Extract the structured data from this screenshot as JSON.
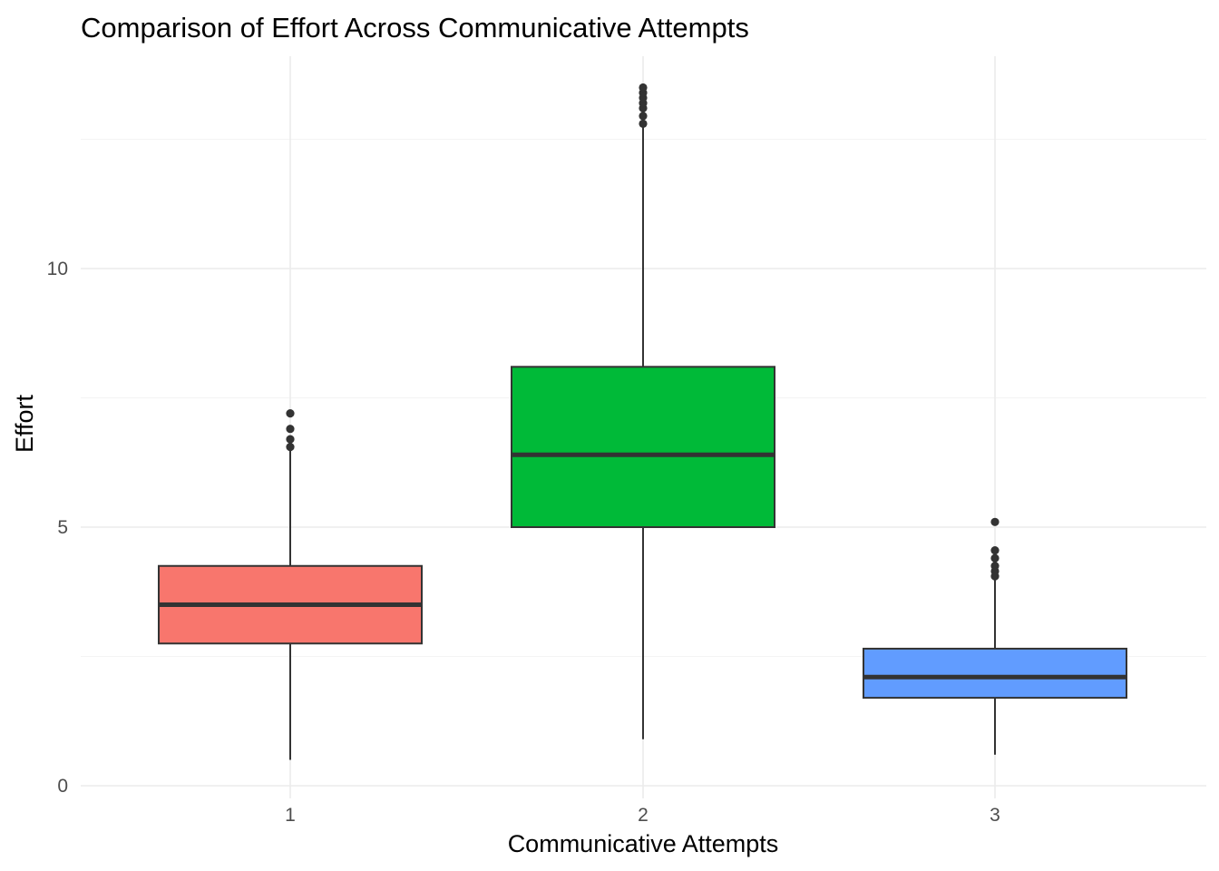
{
  "chart_data": {
    "type": "boxplot",
    "title": "Comparison of Effort Across Communicative Attempts",
    "xlabel": "Communicative Attempts",
    "ylabel": "Effort",
    "categories": [
      "1",
      "2",
      "3"
    ],
    "y_ticks": [
      0,
      5,
      10
    ],
    "ylim": [
      -0.1,
      14.1
    ],
    "grid": true,
    "legend": "none",
    "boxes": [
      {
        "category": "1",
        "color": "#F8766D",
        "lower_whisker": 0.5,
        "q1": 2.75,
        "median": 3.5,
        "q3": 4.25,
        "upper_whisker": 6.5,
        "outliers": [
          6.55,
          6.7,
          6.9,
          7.2
        ]
      },
      {
        "category": "2",
        "color": "#00BA38",
        "lower_whisker": 0.9,
        "q1": 5.0,
        "median": 6.4,
        "q3": 8.1,
        "upper_whisker": 12.8,
        "outliers": [
          12.8,
          12.95,
          13.1,
          13.2,
          13.3,
          13.4,
          13.5
        ]
      },
      {
        "category": "3",
        "color": "#619CFF",
        "lower_whisker": 0.6,
        "q1": 1.7,
        "median": 2.1,
        "q3": 2.65,
        "upper_whisker": 4.0,
        "outliers": [
          4.05,
          4.15,
          4.25,
          4.4,
          4.55,
          5.1
        ]
      }
    ]
  }
}
